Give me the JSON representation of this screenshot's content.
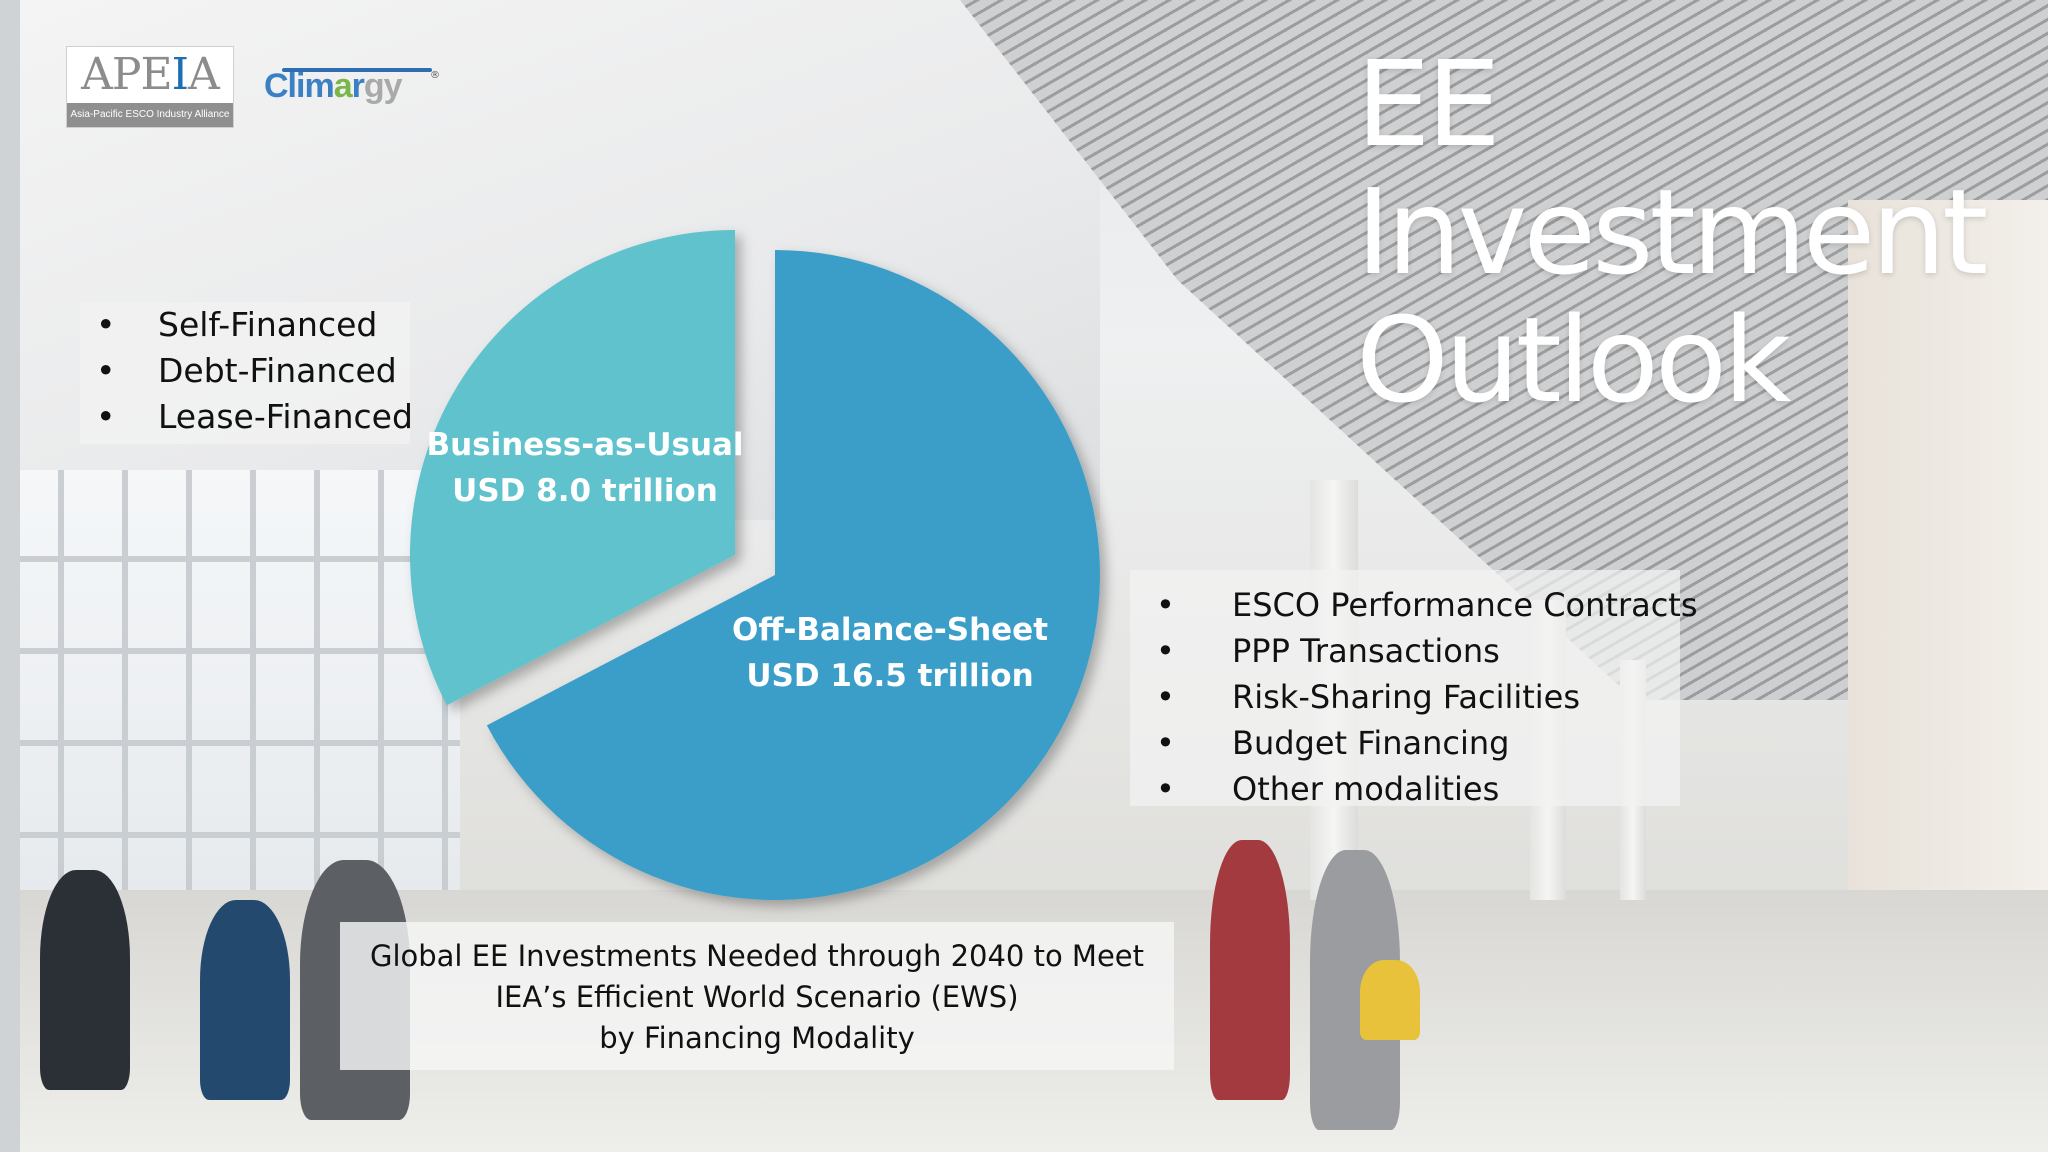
{
  "logos": {
    "apeia": {
      "word_pre": "APE",
      "word_e": "I",
      "word_post": "A",
      "tagline": "Asia-Pacific ESCO Industry Alliance"
    },
    "climargy": {
      "part1": "Clim",
      "part2": "a",
      "part3": "r",
      "part4": "gy",
      "registered": "®"
    }
  },
  "title": {
    "line1": "EE",
    "line2": "Investment",
    "line3": "Outlook"
  },
  "left_list": {
    "bullet": "•",
    "items": [
      "Self-Financed",
      "Debt-Financed",
      "Lease-Financed"
    ]
  },
  "right_list": {
    "bullet": "•",
    "items": [
      "ESCO Performance Contracts",
      "PPP Transactions",
      "Risk-Sharing Facilities",
      "Budget Financing",
      "Other modalities"
    ]
  },
  "caption": {
    "line1": "Global EE Investments Needed through 2040 to Meet",
    "line2": "IEA’s Efficient World Scenario (EWS)",
    "line3": "by Financing Modality"
  },
  "chart_data": {
    "type": "pie",
    "unit": "USD trillion",
    "slices": [
      {
        "name": "Business-as-Usual",
        "value": 8.0,
        "label_line1": "Business-as-Usual",
        "label_line2": "USD 8.0 trillion",
        "color": "#5fc2cc"
      },
      {
        "name": "Off-Balance-Sheet",
        "value": 16.5,
        "label_line1": "Off-Balance-Sheet",
        "label_line2": "USD 16.5 trillion",
        "color": "#3a9ec9"
      }
    ]
  },
  "colors": {
    "title": "#ffffff",
    "bau_slice": "#5fc2cc",
    "obs_slice": "#3a9ec9"
  }
}
